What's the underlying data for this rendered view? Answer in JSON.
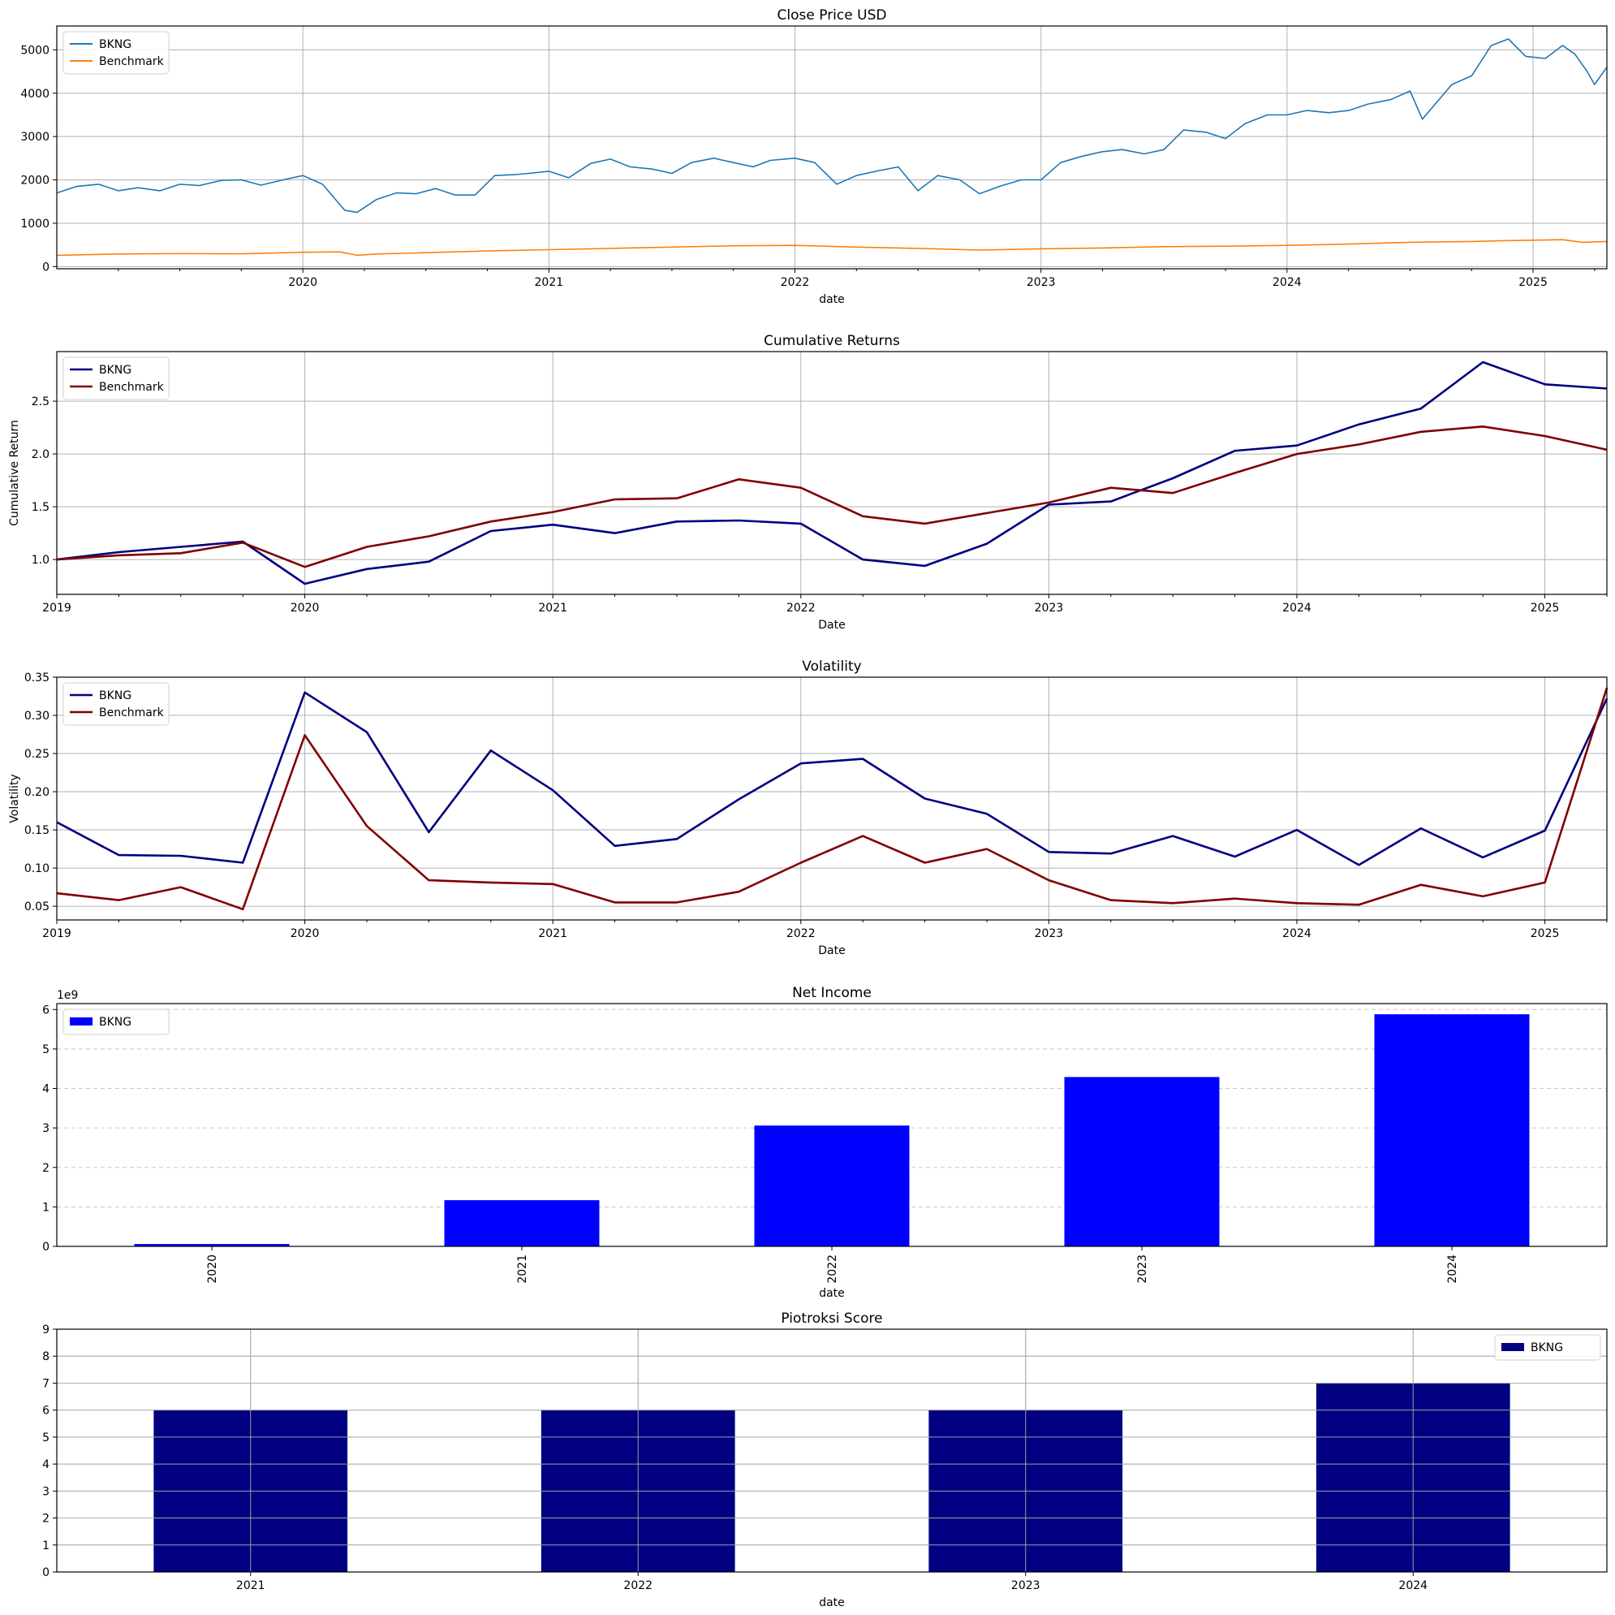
{
  "chart_data": [
    {
      "type": "line",
      "title": "Close Price USD",
      "xlabel": "date",
      "ylabel": "",
      "xlim": [
        2019.0,
        2025.3
      ],
      "ylim": [
        -50,
        5550
      ],
      "yticks": [
        0,
        1000,
        2000,
        3000,
        4000,
        5000
      ],
      "xticks": [
        2020,
        2021,
        2022,
        2023,
        2024,
        2025
      ],
      "grid": "both",
      "legend": "upper left",
      "series": [
        {
          "name": "BKNG",
          "color": "#1f77b4",
          "x": [
            2019.0,
            2019.08,
            2019.17,
            2019.25,
            2019.33,
            2019.42,
            2019.5,
            2019.58,
            2019.67,
            2019.75,
            2019.83,
            2019.92,
            2020.0,
            2020.08,
            2020.17,
            2020.22,
            2020.3,
            2020.38,
            2020.46,
            2020.54,
            2020.62,
            2020.7,
            2020.78,
            2020.86,
            2020.92,
            2021.0,
            2021.08,
            2021.17,
            2021.25,
            2021.33,
            2021.42,
            2021.5,
            2021.58,
            2021.67,
            2021.75,
            2021.83,
            2021.9,
            2022.0,
            2022.08,
            2022.17,
            2022.25,
            2022.33,
            2022.42,
            2022.5,
            2022.58,
            2022.67,
            2022.75,
            2022.83,
            2022.92,
            2023.0,
            2023.08,
            2023.17,
            2023.25,
            2023.33,
            2023.42,
            2023.5,
            2023.58,
            2023.67,
            2023.75,
            2023.83,
            2023.92,
            2024.0,
            2024.08,
            2024.17,
            2024.25,
            2024.33,
            2024.42,
            2024.5,
            2024.55,
            2024.58,
            2024.67,
            2024.75,
            2024.83,
            2024.9,
            2024.97,
            2025.05,
            2025.12,
            2025.17,
            2025.22,
            2025.25,
            2025.3
          ],
          "values": [
            1700,
            1850,
            1900,
            1750,
            1820,
            1750,
            1900,
            1870,
            1990,
            2000,
            1880,
            2000,
            2100,
            1900,
            1300,
            1250,
            1550,
            1700,
            1680,
            1800,
            1650,
            1650,
            2100,
            2120,
            2150,
            2200,
            2050,
            2380,
            2480,
            2300,
            2250,
            2150,
            2400,
            2500,
            2400,
            2300,
            2450,
            2500,
            2400,
            1900,
            2100,
            2200,
            2300,
            1750,
            2100,
            2000,
            1680,
            1850,
            2000,
            2000,
            2400,
            2550,
            2650,
            2700,
            2600,
            2700,
            3150,
            3100,
            2950,
            3300,
            3500,
            3500,
            3600,
            3550,
            3600,
            3750,
            3850,
            4050,
            3400,
            3600,
            4200,
            4400,
            5100,
            5250,
            4850,
            4800,
            5100,
            4900,
            4500,
            4200,
            4600
          ]
        },
        {
          "name": "Benchmark",
          "color": "#ff7f0e",
          "x": [
            2019.0,
            2019.25,
            2019.5,
            2019.75,
            2020.0,
            2020.15,
            2020.22,
            2020.3,
            2020.5,
            2020.75,
            2021.0,
            2021.25,
            2021.5,
            2021.75,
            2022.0,
            2022.25,
            2022.5,
            2022.75,
            2023.0,
            2023.25,
            2023.5,
            2023.75,
            2024.0,
            2024.25,
            2024.5,
            2024.75,
            2024.9,
            2025.0,
            2025.12,
            2025.2,
            2025.3
          ],
          "values": [
            260,
            290,
            300,
            295,
            330,
            340,
            260,
            290,
            320,
            360,
            390,
            420,
            450,
            480,
            490,
            450,
            420,
            380,
            410,
            430,
            460,
            470,
            490,
            520,
            560,
            580,
            600,
            610,
            620,
            560,
            580
          ]
        }
      ]
    },
    {
      "type": "line",
      "title": "Cumulative Returns",
      "xlabel": "Date",
      "ylabel": "Cumulative Return",
      "xlim": [
        2019.0,
        2025.25
      ],
      "ylim": [
        0.67,
        2.97
      ],
      "yticks": [
        1.0,
        1.5,
        2.0,
        2.5
      ],
      "xticks": [
        2019,
        2020,
        2021,
        2022,
        2023,
        2024,
        2025
      ],
      "grid": "both",
      "legend": "upper left",
      "series": [
        {
          "name": "BKNG",
          "color": "#000080",
          "x": [
            2019.0,
            2019.25,
            2019.5,
            2019.75,
            2020.0,
            2020.25,
            2020.5,
            2020.75,
            2021.0,
            2021.25,
            2021.5,
            2021.75,
            2022.0,
            2022.25,
            2022.5,
            2022.75,
            2023.0,
            2023.25,
            2023.5,
            2023.75,
            2024.0,
            2024.25,
            2024.5,
            2024.75,
            2025.0,
            2025.25
          ],
          "values": [
            1.0,
            1.07,
            1.12,
            1.17,
            0.77,
            0.91,
            0.98,
            1.27,
            1.33,
            1.25,
            1.36,
            1.37,
            1.34,
            1.0,
            0.94,
            1.15,
            1.52,
            1.55,
            1.77,
            2.03,
            2.08,
            2.28,
            2.43,
            2.87,
            2.66,
            2.62
          ]
        },
        {
          "name": "Benchmark",
          "color": "#800000",
          "x": [
            2019.0,
            2019.25,
            2019.5,
            2019.75,
            2020.0,
            2020.25,
            2020.5,
            2020.75,
            2021.0,
            2021.25,
            2021.5,
            2021.75,
            2022.0,
            2022.25,
            2022.5,
            2022.75,
            2023.0,
            2023.25,
            2023.5,
            2023.75,
            2024.0,
            2024.25,
            2024.5,
            2024.75,
            2025.0,
            2025.25
          ],
          "values": [
            1.0,
            1.04,
            1.06,
            1.16,
            0.93,
            1.12,
            1.22,
            1.36,
            1.45,
            1.57,
            1.58,
            1.76,
            1.68,
            1.41,
            1.34,
            1.44,
            1.54,
            1.68,
            1.63,
            1.82,
            2.0,
            2.09,
            2.21,
            2.26,
            2.17,
            2.04
          ]
        }
      ]
    },
    {
      "type": "line",
      "title": "Volatility",
      "xlabel": "Date",
      "ylabel": "Volatility",
      "xlim": [
        2019.0,
        2025.25
      ],
      "ylim": [
        0.032,
        0.35
      ],
      "yticks": [
        0.05,
        0.1,
        0.15,
        0.2,
        0.25,
        0.3,
        0.35
      ],
      "xticks": [
        2019,
        2020,
        2021,
        2022,
        2023,
        2024,
        2025
      ],
      "grid": "both",
      "legend": "upper left",
      "series": [
        {
          "name": "BKNG",
          "color": "#000080",
          "x": [
            2019.0,
            2019.25,
            2019.5,
            2019.75,
            2020.0,
            2020.25,
            2020.5,
            2020.75,
            2021.0,
            2021.25,
            2021.5,
            2021.75,
            2022.0,
            2022.25,
            2022.5,
            2022.75,
            2023.0,
            2023.25,
            2023.5,
            2023.75,
            2024.0,
            2024.25,
            2024.5,
            2024.75,
            2025.0,
            2025.25
          ],
          "values": [
            0.16,
            0.117,
            0.116,
            0.107,
            0.33,
            0.278,
            0.147,
            0.254,
            0.202,
            0.129,
            0.138,
            0.19,
            0.237,
            0.243,
            0.191,
            0.171,
            0.121,
            0.119,
            0.142,
            0.115,
            0.15,
            0.104,
            0.152,
            0.114,
            0.149,
            0.322
          ]
        },
        {
          "name": "Benchmark",
          "color": "#800000",
          "x": [
            2019.0,
            2019.25,
            2019.5,
            2019.75,
            2020.0,
            2020.25,
            2020.5,
            2020.75,
            2021.0,
            2021.25,
            2021.5,
            2021.75,
            2022.0,
            2022.25,
            2022.5,
            2022.75,
            2023.0,
            2023.25,
            2023.5,
            2023.75,
            2024.0,
            2024.25,
            2024.5,
            2024.75,
            2025.0,
            2025.25
          ],
          "values": [
            0.067,
            0.058,
            0.075,
            0.046,
            0.274,
            0.155,
            0.084,
            0.081,
            0.079,
            0.055,
            0.055,
            0.069,
            0.107,
            0.142,
            0.107,
            0.125,
            0.084,
            0.058,
            0.054,
            0.06,
            0.054,
            0.052,
            0.078,
            0.063,
            0.081,
            0.336
          ]
        }
      ]
    },
    {
      "type": "bar",
      "title": "Net Income",
      "xlabel": "date",
      "ylabel": "",
      "scale_label": "1e9",
      "categories": [
        "2020",
        "2021",
        "2022",
        "2023",
        "2024"
      ],
      "series": [
        {
          "name": "BKNG",
          "color": "#0000ff",
          "values": [
            0.06,
            1.17,
            3.06,
            4.29,
            5.88
          ]
        }
      ],
      "ylim": [
        0,
        6.15
      ],
      "yticks": [
        0,
        1,
        2,
        3,
        4,
        5,
        6
      ],
      "grid": "y-dashed",
      "legend": "upper left",
      "xtick_rotation": 90
    },
    {
      "type": "bar",
      "title": "Piotroksi Score",
      "xlabel": "date",
      "ylabel": "",
      "categories": [
        "2021",
        "2022",
        "2023",
        "2024"
      ],
      "series": [
        {
          "name": "BKNG",
          "color": "#000080",
          "values": [
            6,
            6,
            6,
            7
          ]
        }
      ],
      "ylim": [
        0,
        9
      ],
      "yticks": [
        0,
        1,
        2,
        3,
        4,
        5,
        6,
        7,
        8,
        9
      ],
      "grid": "both",
      "legend": "upper right"
    }
  ]
}
